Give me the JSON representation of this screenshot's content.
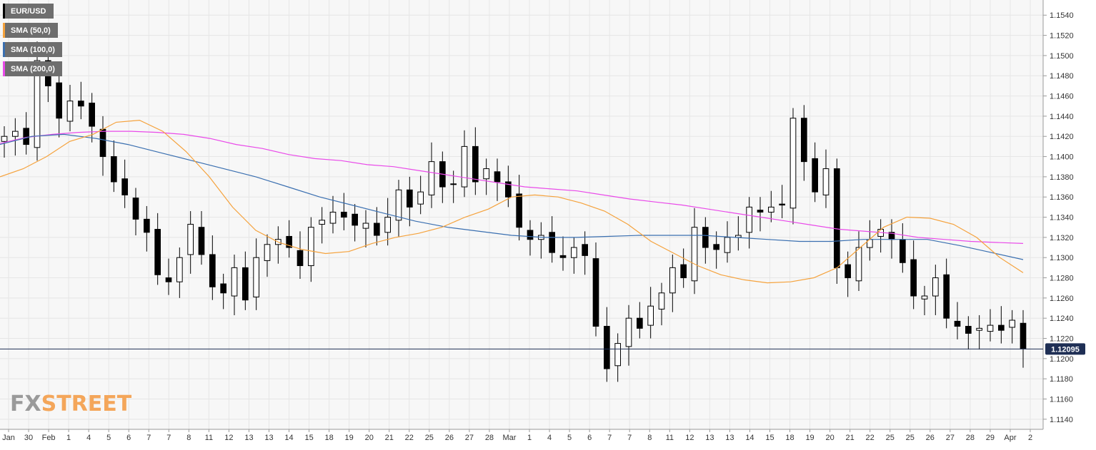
{
  "chart_data": {
    "type": "candlestick",
    "symbol": "EUR/USD",
    "legend": [
      {
        "label": "EUR/USD",
        "color": "#000000"
      },
      {
        "label": "SMA (50,0)",
        "color": "#f5a23c"
      },
      {
        "label": "SMA (100,0)",
        "color": "#3a6fb0"
      },
      {
        "label": "SMA (200,0)",
        "color": "#e94ae9"
      }
    ],
    "x_tick_labels": [
      "Jan",
      "30",
      "Feb",
      "1",
      "4",
      "5",
      "6",
      "7",
      "7",
      "8",
      "11",
      "12",
      "13",
      "13",
      "14",
      "15",
      "18",
      "19",
      "20",
      "21",
      "22",
      "25",
      "26",
      "27",
      "28",
      "Mar",
      "1",
      "4",
      "5",
      "6",
      "7",
      "7",
      "8",
      "11",
      "12",
      "13",
      "13",
      "14",
      "15",
      "18",
      "19",
      "20",
      "21",
      "22",
      "25",
      "25",
      "26",
      "27",
      "28",
      "29",
      "Apr",
      "2"
    ],
    "y_ticks": [
      1.114,
      1.116,
      1.118,
      1.12,
      1.122,
      1.124,
      1.126,
      1.128,
      1.13,
      1.132,
      1.134,
      1.136,
      1.138,
      1.14,
      1.142,
      1.144,
      1.146,
      1.148,
      1.15,
      1.152,
      1.154
    ],
    "y_tick_labels": [
      "1.1140",
      "1.1160",
      "1.1180",
      "1.1200",
      "1.1220",
      "1.1240",
      "1.1260",
      "1.1280",
      "1.1300",
      "1.1320",
      "1.1340",
      "1.1360",
      "1.1380",
      "1.1400",
      "1.1420",
      "1.1440",
      "1.1460",
      "1.1480",
      "1.1500",
      "1.1520",
      "1.1540"
    ],
    "ylim": [
      1.113,
      1.1555
    ],
    "grid": true,
    "current_price": 1.12095,
    "current_price_label": "1.12095",
    "close": [
      1.142,
      1.1425,
      1.1412,
      1.1495,
      1.147,
      1.1438,
      1.1455,
      1.145,
      1.143,
      1.14,
      1.1375,
      1.1362,
      1.1338,
      1.1325,
      1.1283,
      1.1276,
      1.13,
      1.1333,
      1.1303,
      1.1271,
      1.1265,
      1.129,
      1.1258,
      1.13,
      1.1313,
      1.1318,
      1.131,
      1.1292,
      1.133,
      1.1337,
      1.1345,
      1.134,
      1.1332,
      1.1334,
      1.1322,
      1.134,
      1.1367,
      1.135,
      1.1365,
      1.1395,
      1.137,
      1.1373,
      1.141,
      1.1375,
      1.1388,
      1.1375,
      1.136,
      1.133,
      1.1318,
      1.1322,
      1.1305,
      1.13,
      1.131,
      1.1302,
      1.1232,
      1.119,
      1.1215,
      1.124,
      1.123,
      1.1252,
      1.1265,
      1.129,
      1.128,
      1.133,
      1.131,
      1.1308,
      1.132,
      1.1322,
      1.135,
      1.1345,
      1.135,
      1.1352,
      1.1438,
      1.1395,
      1.1365,
      1.1388,
      1.129,
      1.128,
      1.131,
      1.1318,
      1.1328,
      1.1318,
      1.1295,
      1.1262,
      1.1262,
      1.128,
      1.124,
      1.1232,
      1.1225,
      1.123,
      1.1233,
      1.1228,
      1.1238,
      1.121
    ],
    "sma50": [
      1.138,
      1.1388,
      1.14,
      1.1415,
      1.1422,
      1.1434,
      1.1436,
      1.1425,
      1.1405,
      1.138,
      1.135,
      1.1327,
      1.1315,
      1.1308,
      1.1304,
      1.1306,
      1.1314,
      1.132,
      1.1324,
      1.133,
      1.134,
      1.1348,
      1.136,
      1.1362,
      1.136,
      1.1354,
      1.1346,
      1.1333,
      1.1316,
      1.1304,
      1.1292,
      1.1283,
      1.1278,
      1.1275,
      1.1276,
      1.128,
      1.129,
      1.131,
      1.133,
      1.134,
      1.1339,
      1.1333,
      1.132,
      1.13,
      1.1285
    ],
    "sma100": [
      1.1412,
      1.142,
      1.1422,
      1.1418,
      1.1412,
      1.1404,
      1.1396,
      1.1388,
      1.138,
      1.137,
      1.136,
      1.1352,
      1.1344,
      1.1336,
      1.133,
      1.1326,
      1.1322,
      1.132,
      1.132,
      1.1321,
      1.1322,
      1.1322,
      1.1322,
      1.132,
      1.1318,
      1.1316,
      1.1316,
      1.1318,
      1.1318,
      1.1318,
      1.1312,
      1.1305,
      1.1298
    ],
    "sma200": [
      1.1413,
      1.1419,
      1.1422,
      1.1424,
      1.1425,
      1.1425,
      1.1424,
      1.1422,
      1.1418,
      1.1412,
      1.1408,
      1.1402,
      1.1398,
      1.1396,
      1.1392,
      1.139,
      1.1386,
      1.1382,
      1.1378,
      1.1374,
      1.137,
      1.1368,
      1.1366,
      1.1362,
      1.1358,
      1.1355,
      1.1352,
      1.1348,
      1.1344,
      1.134,
      1.1336,
      1.1332,
      1.1328,
      1.1326,
      1.1324,
      1.132,
      1.1318,
      1.1316,
      1.1315,
      1.1314
    ]
  },
  "watermark": {
    "part1": "FX",
    "part2": "STREET"
  },
  "colors": {
    "background": "#f7f7f7",
    "grid": "#e6e6e6",
    "axis": "#9a9a9a",
    "text": "#333333",
    "price_line": "#1f2f55",
    "price_badge": "#1f2f55",
    "candle_up_fill": "#ffffff",
    "candle_down_fill": "#000000",
    "sma50": "#f5a23c",
    "sma100": "#3a6fb0",
    "sma200": "#e94ae9",
    "legend_bg": "#6e6e6e"
  }
}
